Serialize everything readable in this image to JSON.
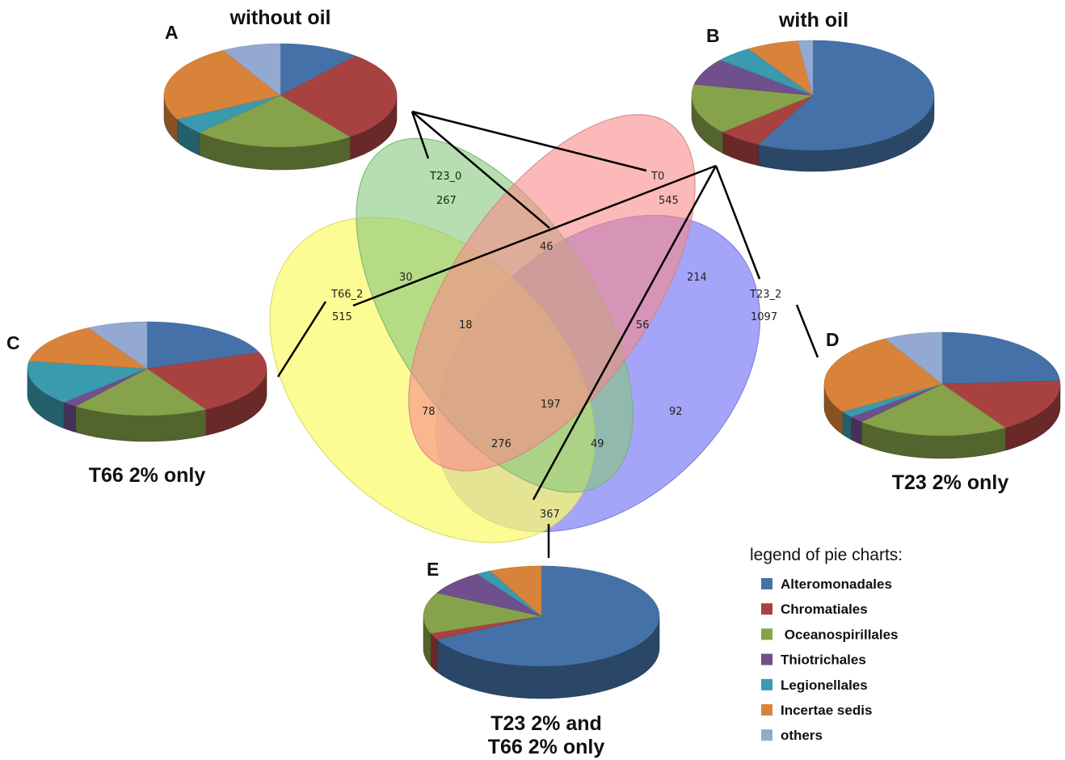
{
  "colors": {
    "Alteromonadales": "#4472a8",
    "Chromatiales": "#a84240",
    "Oceanospirillales": "#86a24a",
    "Thiotrichales": "#6f4f8c",
    "Legionellales": "#3a9aae",
    "Incertae sedis": "#d9833a",
    "others": "#93a9d2"
  },
  "venn": {
    "sets": [
      {
        "id": "T66_2",
        "label": "T66_2",
        "color": "#fbfa70"
      },
      {
        "id": "T23_0",
        "label": "T23_0",
        "color": "#85c87b"
      },
      {
        "id": "T0",
        "label": "T0",
        "color": "#f88a8a"
      },
      {
        "id": "T23_2",
        "label": "T23_2",
        "color": "#8586f7"
      }
    ],
    "counts": {
      "t23_0_only": "267",
      "t0_only": "545",
      "t66_2_only": "515",
      "t23_2_only": "1097",
      "t23_0_t0": "46",
      "t66_2_t23_0": "30",
      "t0_t23_2": "214",
      "t66_2_t23_0_t0": "18",
      "t23_0_t0_t23_2": "56",
      "all_four": "197",
      "t66_2_t0": "78",
      "t23_0_t23_2": "92",
      "t66_2_t0_t23_2": "276",
      "t66_2_t23_0_t23_2": "49",
      "t66_2_t23_2": "367"
    }
  },
  "pies": [
    {
      "id": "A",
      "letter": "A",
      "title": "without oil",
      "title2": "",
      "slices": [
        {
          "name": "Alteromonadales",
          "value": 11
        },
        {
          "name": "Chromatiales",
          "value": 28
        },
        {
          "name": "Oceanospirillales",
          "value": 22
        },
        {
          "name": "Thiotrichales",
          "value": 0
        },
        {
          "name": "Legionellales",
          "value": 5
        },
        {
          "name": "Incertae sedis",
          "value": 24
        },
        {
          "name": "others",
          "value": 8
        }
      ]
    },
    {
      "id": "B",
      "letter": "B",
      "title": "with oil",
      "title2": "",
      "slices": [
        {
          "name": "Alteromonadales",
          "value": 58
        },
        {
          "name": "Chromatiales",
          "value": 6
        },
        {
          "name": "Oceanospirillales",
          "value": 15
        },
        {
          "name": "Thiotrichales",
          "value": 8
        },
        {
          "name": "Legionellales",
          "value": 5
        },
        {
          "name": "Incertae sedis",
          "value": 7
        },
        {
          "name": "others",
          "value": 2
        }
      ]
    },
    {
      "id": "C",
      "letter": "C",
      "title": "T66 2% only",
      "title2": "",
      "slices": [
        {
          "name": "Alteromonadales",
          "value": 19
        },
        {
          "name": "Chromatiales",
          "value": 22
        },
        {
          "name": "Oceanospirillales",
          "value": 18
        },
        {
          "name": "Thiotrichales",
          "value": 2
        },
        {
          "name": "Legionellales",
          "value": 15
        },
        {
          "name": "Incertae sedis",
          "value": 14
        },
        {
          "name": "others",
          "value": 8
        }
      ]
    },
    {
      "id": "D",
      "letter": "D",
      "title": "T23 2% only",
      "title2": "",
      "slices": [
        {
          "name": "Alteromonadales",
          "value": 24
        },
        {
          "name": "Chromatiales",
          "value": 17
        },
        {
          "name": "Oceanospirillales",
          "value": 21
        },
        {
          "name": "Thiotrichales",
          "value": 2
        },
        {
          "name": "Legionellales",
          "value": 2
        },
        {
          "name": "Incertae sedis",
          "value": 26
        },
        {
          "name": "others",
          "value": 8
        }
      ]
    },
    {
      "id": "E",
      "letter": "E",
      "title": "T23 2% and",
      "title2": "T66 2% only",
      "slices": [
        {
          "name": "Alteromonadales",
          "value": 66
        },
        {
          "name": "Chromatiales",
          "value": 2
        },
        {
          "name": "Oceanospirillales",
          "value": 13
        },
        {
          "name": "Thiotrichales",
          "value": 8
        },
        {
          "name": "Legionellales",
          "value": 2
        },
        {
          "name": "Incertae sedis",
          "value": 7
        },
        {
          "name": "others",
          "value": 0
        }
      ]
    }
  ],
  "legend": {
    "title": "legend of pie charts:",
    "items": [
      "Alteromonadales",
      "Chromatiales",
      " Oceanospirillales",
      "Thiotrichales",
      "Legionellales",
      "Incertae sedis",
      "others"
    ]
  }
}
